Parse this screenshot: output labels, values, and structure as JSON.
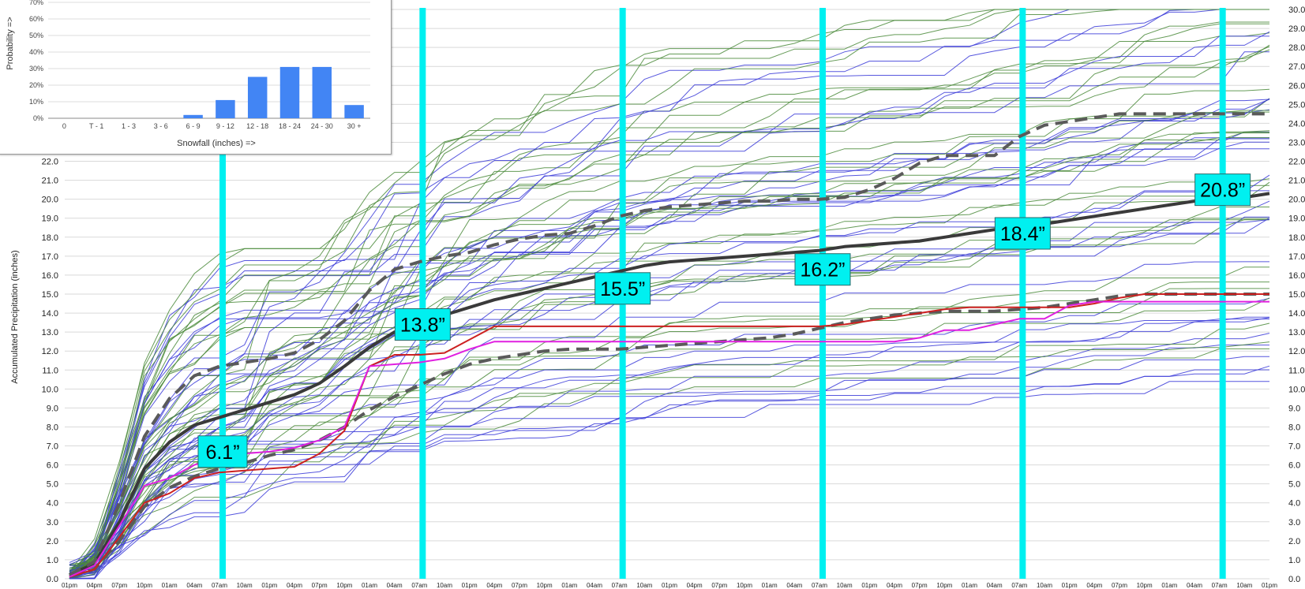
{
  "colors": {
    "members_blue": "#3a3ad8",
    "members_green": "#4a8a3a",
    "mean_line": "#3a3a3a",
    "dashed_line": "#5a5a5a",
    "red_line": "#cc2020",
    "magenta_line": "#e020e0",
    "marker": "#00f0f0",
    "bar": "#4285f4",
    "grid": "#d9d9d9"
  },
  "chart_data": [
    {
      "type": "line",
      "title": "",
      "ylabel": "Accumulated Precipitation (inches)",
      "xlabel": "",
      "ylim": [
        0,
        30
      ],
      "grid": true,
      "y_ticks_left": [
        "0.0",
        "1.0",
        "2.0",
        "3.0",
        "4.0",
        "5.0",
        "6.0",
        "7.0",
        "8.0",
        "9.0",
        "10.0",
        "11.0",
        "12.0",
        "13.0",
        "14.0",
        "15.0",
        "16.0",
        "17.0",
        "18.0",
        "19.0",
        "20.0",
        "21.0",
        "22.0"
      ],
      "y_ticks_right": [
        "0.0",
        "1.0",
        "2.0",
        "3.0",
        "4.0",
        "5.0",
        "6.0",
        "7.0",
        "8.0",
        "9.0",
        "10.0",
        "11.0",
        "12.0",
        "13.0",
        "14.0",
        "15.0",
        "16.0",
        "17.0",
        "18.0",
        "19.0",
        "20.0",
        "21.0",
        "22.0",
        "23.0",
        "24.0",
        "25.0",
        "26.0",
        "27.0",
        "28.0",
        "29.0",
        "30.0"
      ],
      "x": [
        "01pm",
        "04pm",
        "07pm",
        "10pm",
        "01am",
        "04am",
        "07am",
        "10am",
        "01pm",
        "04pm",
        "07pm",
        "10pm",
        "01am",
        "04am",
        "07am",
        "10am",
        "01pm",
        "04pm",
        "07pm",
        "10pm",
        "01am",
        "04am",
        "07am",
        "10am",
        "01pm",
        "04pm",
        "07pm",
        "10pm",
        "01am",
        "04am",
        "07am",
        "10am",
        "01pm",
        "04pm",
        "07pm",
        "10pm",
        "01am",
        "04am",
        "07am",
        "10am",
        "01pm",
        "04pm",
        "07pm",
        "10pm",
        "01am",
        "04am",
        "07am",
        "10am",
        "01pm"
      ],
      "series": [
        {
          "role": "mean",
          "values": [
            0.2,
            0.8,
            3.0,
            5.8,
            7.2,
            8.1,
            8.5,
            8.9,
            9.3,
            9.7,
            10.3,
            11.2,
            12.2,
            13.0,
            13.3,
            13.9,
            14.3,
            14.7,
            15.0,
            15.3,
            15.6,
            15.9,
            16.2,
            16.5,
            16.7,
            16.8,
            16.9,
            17.0,
            17.1,
            17.2,
            17.3,
            17.5,
            17.6,
            17.7,
            17.8,
            18.0,
            18.2,
            18.4,
            18.5,
            18.7,
            18.9,
            19.1,
            19.3,
            19.5,
            19.7,
            19.9,
            20.0,
            20.1,
            20.3
          ]
        },
        {
          "role": "upper-dashed",
          "values": [
            0.2,
            0.9,
            4.0,
            7.5,
            9.5,
            10.7,
            11.2,
            11.4,
            11.6,
            11.9,
            12.6,
            13.6,
            15.2,
            16.3,
            16.7,
            17.0,
            17.2,
            17.6,
            17.9,
            18.1,
            18.2,
            18.6,
            19.1,
            19.4,
            19.6,
            19.7,
            19.8,
            19.9,
            19.9,
            20.0,
            20.0,
            20.1,
            20.5,
            21.1,
            21.9,
            22.3,
            22.3,
            22.3,
            23.3,
            23.9,
            24.1,
            24.3,
            24.5,
            24.5,
            24.5,
            24.5,
            24.5,
            24.5,
            24.5
          ]
        },
        {
          "role": "lower-dashed",
          "values": [
            0.1,
            0.5,
            2.0,
            3.8,
            4.8,
            5.4,
            5.8,
            6.1,
            6.5,
            6.8,
            7.3,
            8.0,
            8.9,
            9.6,
            10.2,
            10.8,
            11.3,
            11.6,
            11.8,
            12.0,
            12.1,
            12.1,
            12.1,
            12.2,
            12.3,
            12.4,
            12.5,
            12.6,
            12.7,
            12.9,
            13.2,
            13.5,
            13.7,
            13.9,
            14.0,
            14.1,
            14.1,
            14.1,
            14.2,
            14.3,
            14.5,
            14.7,
            14.9,
            15.0,
            15.0,
            15.0,
            15.0,
            15.0,
            15.0
          ]
        },
        {
          "role": "red",
          "values": [
            0.1,
            0.5,
            2.2,
            4.0,
            4.5,
            5.3,
            5.6,
            5.7,
            5.8,
            5.9,
            6.6,
            7.8,
            11.2,
            11.8,
            11.8,
            11.9,
            12.6,
            13.3,
            13.3,
            13.3,
            13.3,
            13.3,
            13.3,
            13.3,
            13.3,
            13.3,
            13.3,
            13.3,
            13.3,
            13.3,
            13.3,
            13.4,
            13.6,
            13.8,
            14.0,
            14.2,
            14.3,
            14.3,
            14.3,
            14.3,
            14.3,
            14.5,
            14.8,
            15.0,
            15.0,
            15.0,
            15.0,
            15.0,
            15.0
          ]
        },
        {
          "role": "magenta",
          "values": [
            0.1,
            0.7,
            2.8,
            4.9,
            5.3,
            6.0,
            6.4,
            6.6,
            6.7,
            6.9,
            7.3,
            8.0,
            11.2,
            11.3,
            11.4,
            11.6,
            12.1,
            12.5,
            12.5,
            12.5,
            12.5,
            12.5,
            12.5,
            12.5,
            12.5,
            12.5,
            12.5,
            12.5,
            12.5,
            12.5,
            12.5,
            12.5,
            12.5,
            12.5,
            12.7,
            13.1,
            13.1,
            13.4,
            13.7,
            13.7,
            14.4,
            14.6,
            14.6,
            14.6,
            14.6,
            14.6,
            14.6,
            14.6,
            14.6
          ]
        }
      ],
      "markers": [
        {
          "label": "6.1”",
          "x_index": 6,
          "value_y": 6.7
        },
        {
          "label": "13.8”",
          "x_index": 14,
          "value_y": 13.4
        },
        {
          "label": "15.5”",
          "x_index": 22,
          "value_y": 15.3
        },
        {
          "label": "16.2”",
          "x_index": 30,
          "value_y": 16.3
        },
        {
          "label": "18.4”",
          "x_index": 38,
          "value_y": 18.2
        },
        {
          "label": "20.8”",
          "x_index": 46,
          "value_y": 20.5
        }
      ]
    },
    {
      "type": "bar",
      "title": "",
      "xlabel": "Snowfall (inches) =>",
      "ylabel": "Probability =>",
      "ylim": [
        0,
        70
      ],
      "y_ticks": [
        "0%",
        "10%",
        "20%",
        "30%",
        "40%",
        "50%",
        "60%",
        "70%"
      ],
      "categories": [
        "0",
        "T - 1",
        "1 - 3",
        "3 - 6",
        "6 - 9",
        "9 - 12",
        "12 - 18",
        "18 - 24",
        "24 - 30",
        "30 +"
      ],
      "values": [
        0,
        0,
        0,
        0,
        2,
        11,
        25,
        31,
        31,
        8
      ]
    }
  ]
}
